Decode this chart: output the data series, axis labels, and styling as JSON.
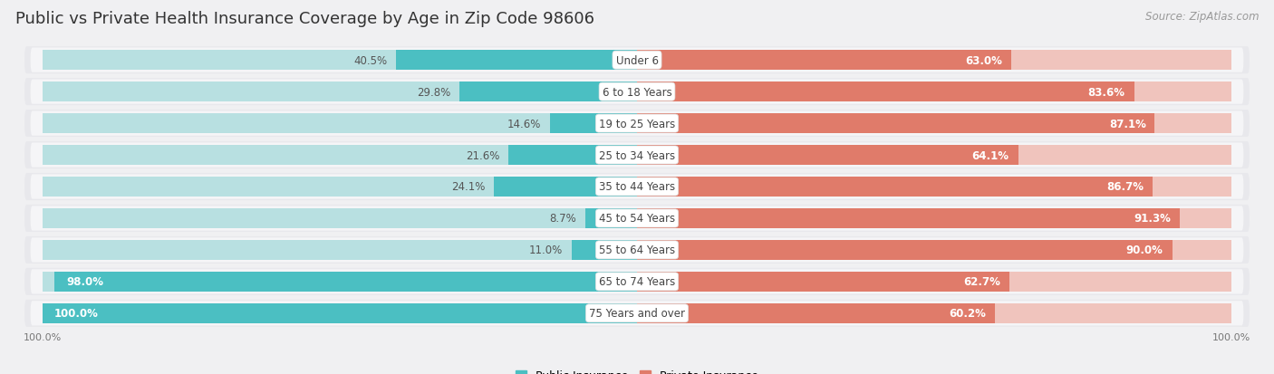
{
  "title": "Public vs Private Health Insurance Coverage by Age in Zip Code 98606",
  "source": "Source: ZipAtlas.com",
  "categories": [
    "Under 6",
    "6 to 18 Years",
    "19 to 25 Years",
    "25 to 34 Years",
    "35 to 44 Years",
    "45 to 54 Years",
    "55 to 64 Years",
    "65 to 74 Years",
    "75 Years and over"
  ],
  "public_values": [
    40.5,
    29.8,
    14.6,
    21.6,
    24.1,
    8.7,
    11.0,
    98.0,
    100.0
  ],
  "private_values": [
    63.0,
    83.6,
    87.1,
    64.1,
    86.7,
    91.3,
    90.0,
    62.7,
    60.2
  ],
  "public_color": "#4bbfc2",
  "private_color": "#e07b6a",
  "public_color_light": "#b8e0e1",
  "private_color_light": "#f0c4bd",
  "row_bg_color": "#e8e8ec",
  "row_inner_bg": "#f5f5f7",
  "title_color": "#333333",
  "source_color": "#999999",
  "label_dark": "#555555",
  "label_white": "#ffffff",
  "max_value": 100.0,
  "legend_public": "Public Insurance",
  "legend_private": "Private Insurance",
  "title_fontsize": 13,
  "source_fontsize": 8.5,
  "value_fontsize": 8.5,
  "cat_fontsize": 8.5,
  "bar_height": 0.62,
  "figsize": [
    14.06,
    4.14
  ],
  "dpi": 100,
  "fig_bg": "#f0f0f2"
}
